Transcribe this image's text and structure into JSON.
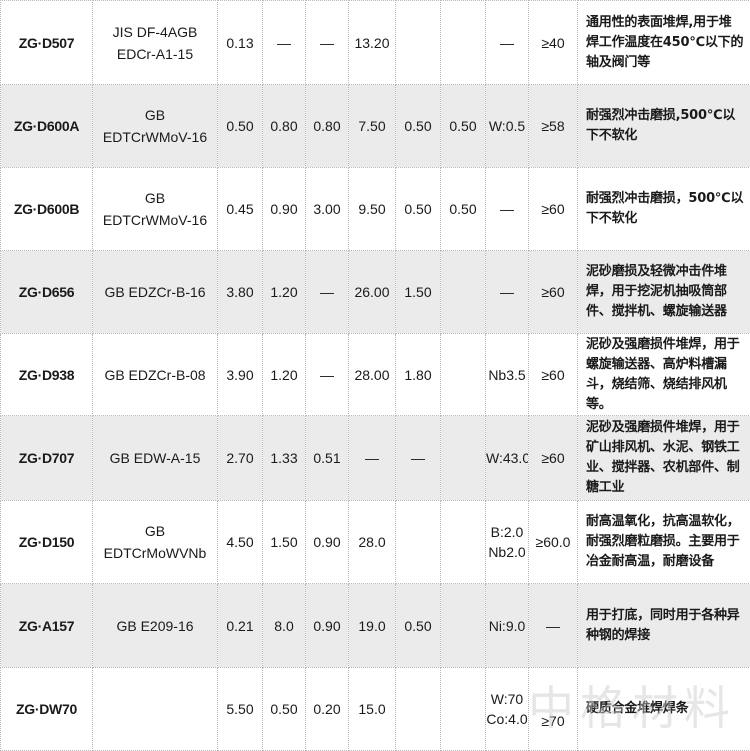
{
  "rows": [
    {
      "model": "ZG·D507",
      "standard": [
        "JIS  DF-4AGB",
        "EDCr-A1-15"
      ],
      "values": [
        "0.13",
        "—",
        "—",
        "13.20",
        "",
        ""
      ],
      "other": [
        "—"
      ],
      "hardness": "≥40",
      "description": "通用性的表面堆焊,用于堆焊工作温度在450℃以下的轴及阀门等"
    },
    {
      "model": "ZG·D600A",
      "standard": [
        "GB",
        "EDTCrWMoV-16"
      ],
      "values": [
        "0.50",
        "0.80",
        "0.80",
        "7.50",
        "0.50",
        "0.50"
      ],
      "other": [
        "W:0.5"
      ],
      "hardness": "≥58",
      "description": "耐强烈冲击磨损,500℃以下不软化"
    },
    {
      "model": "ZG·D600B",
      "standard": [
        "GB",
        "EDTCrWMoV-16"
      ],
      "values": [
        "0.45",
        "0.90",
        "3.00",
        "9.50",
        "0.50",
        "0.50"
      ],
      "other": [
        "—"
      ],
      "hardness": "≥60",
      "description": "耐强烈冲击磨损，500℃以下不软化"
    },
    {
      "model": "ZG·D656",
      "standard": [
        "GB  EDZCr-B-16"
      ],
      "values": [
        "3.80",
        "1.20",
        "—",
        "26.00",
        "1.50",
        ""
      ],
      "other": [
        "—"
      ],
      "hardness": "≥60",
      "description": "泥砂磨损及轻微冲击件堆焊，用于挖泥机抽吸筒部件、搅拌机、螺旋输送器"
    },
    {
      "model": "ZG·D938",
      "standard": [
        "GB  EDZCr-B-08"
      ],
      "values": [
        "3.90",
        "1.20",
        "—",
        "28.00",
        "1.80",
        ""
      ],
      "other": [
        "Nb3.5"
      ],
      "hardness": "≥60",
      "description": "泥砂及强磨损件堆焊，用于螺旋输送器、高炉料槽漏斗，烧结筛、烧结排风机等。"
    },
    {
      "model": "ZG·D707",
      "standard": [
        "GB  EDW-A-15"
      ],
      "values": [
        "2.70",
        "1.33",
        "0.51",
        "—",
        "—",
        ""
      ],
      "other": [
        "W:43.0"
      ],
      "hardness": "≥60",
      "description": "泥砂及强磨损件堆焊，用于矿山排风机、水泥、钢铁工业、搅拌器、农机部件、制糖工业"
    },
    {
      "model": "ZG·D150",
      "standard": [
        "GB",
        "EDTCrMoWVNb"
      ],
      "values": [
        "4.50",
        "1.50",
        "0.90",
        "28.0",
        "",
        ""
      ],
      "other": [
        "B:2.0",
        "Nb2.0"
      ],
      "hardness": "≥60.0",
      "description": "耐高温氧化，抗高温软化，耐强烈磨粒磨损。主要用于冶金耐高温，耐磨设备"
    },
    {
      "model": "ZG·A157",
      "standard": [
        "GB  E209-16"
      ],
      "values": [
        "0.21",
        "8.0",
        "0.90",
        "19.0",
        "0.50",
        ""
      ],
      "other": [
        "Ni:9.0"
      ],
      "hardness": "—",
      "description": "用于打底，同时用于各种异种钢的焊接"
    },
    {
      "model": "ZG·DW70",
      "standard": [],
      "values": [
        "5.50",
        "0.50",
        "0.20",
        "15.0",
        "",
        ""
      ],
      "other": [
        "W:70",
        "Co:4.0"
      ],
      "hardness": "≥70",
      "description": "硬质合金堆焊焊条"
    }
  ],
  "watermark": "中格材料"
}
